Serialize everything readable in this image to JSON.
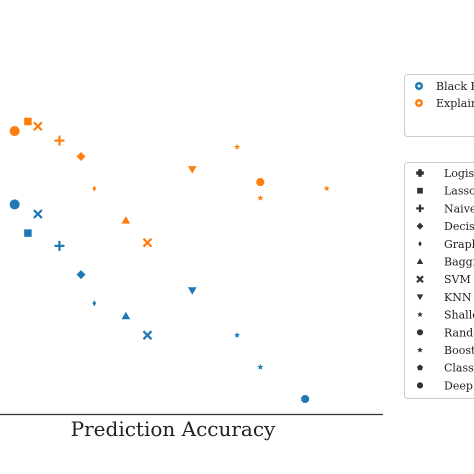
{
  "chart_data": {
    "type": "scatter",
    "xlabel": "Prediction Accuracy",
    "ylabel": "",
    "title": "",
    "grid": false,
    "xlim": [
      0,
      100
    ],
    "ylim": [
      0,
      100
    ],
    "colors": {
      "black_box": "#1f77b4",
      "explainable": "#ff7f0e"
    },
    "group_legend": {
      "placement": "top-right",
      "entries": [
        {
          "label": "Black Bo",
          "color": "#1f77b4"
        },
        {
          "label": "Explaina",
          "color": "#ff7f0e"
        }
      ]
    },
    "model_legend": {
      "placement": "right",
      "entries": [
        {
          "label": "Logist",
          "marker": "plus-filled"
        },
        {
          "label": "Lasso",
          "marker": "square"
        },
        {
          "label": "Naive",
          "marker": "plus"
        },
        {
          "label": "Decisi",
          "marker": "diamond"
        },
        {
          "label": "Graph",
          "marker": "thin-diamond"
        },
        {
          "label": "Baggi",
          "marker": "triangle-up"
        },
        {
          "label": "SVM",
          "marker": "x"
        },
        {
          "label": "KNN",
          "marker": "triangle-down"
        },
        {
          "label": "Shallo",
          "marker": "star"
        },
        {
          "label": "Rando",
          "marker": "octagon"
        },
        {
          "label": "Boost",
          "marker": "star"
        },
        {
          "label": "Classi",
          "marker": "pentagon"
        },
        {
          "label": "Deep",
          "marker": "octagon"
        }
      ]
    },
    "series": [
      {
        "name": "Black Bo",
        "points": [
          {
            "x": 2,
            "y": 61,
            "marker": "circle"
          },
          {
            "x": 6,
            "y": 52,
            "marker": "square"
          },
          {
            "x": 9,
            "y": 58,
            "marker": "x"
          },
          {
            "x": 15.5,
            "y": 48,
            "marker": "plus"
          },
          {
            "x": 22,
            "y": 39,
            "marker": "diamond"
          },
          {
            "x": 26,
            "y": 30,
            "marker": "thin-diamond"
          },
          {
            "x": 35.5,
            "y": 26,
            "marker": "triangle-up"
          },
          {
            "x": 42,
            "y": 20,
            "marker": "x"
          },
          {
            "x": 55.5,
            "y": 34,
            "marker": "triangle-down"
          },
          {
            "x": 69,
            "y": 20,
            "marker": "star"
          },
          {
            "x": 76,
            "y": 10,
            "marker": "star"
          },
          {
            "x": 89.5,
            "y": 0,
            "marker": "octagon"
          }
        ]
      },
      {
        "name": "Explaina",
        "points": [
          {
            "x": 2,
            "y": 84,
            "marker": "circle"
          },
          {
            "x": 6,
            "y": 87,
            "marker": "square"
          },
          {
            "x": 9,
            "y": 85.5,
            "marker": "x"
          },
          {
            "x": 15.5,
            "y": 81,
            "marker": "plus"
          },
          {
            "x": 22,
            "y": 76,
            "marker": "diamond"
          },
          {
            "x": 26,
            "y": 66,
            "marker": "thin-diamond"
          },
          {
            "x": 35.5,
            "y": 56,
            "marker": "triangle-up"
          },
          {
            "x": 42,
            "y": 49,
            "marker": "x"
          },
          {
            "x": 55.5,
            "y": 72,
            "marker": "triangle-down"
          },
          {
            "x": 69,
            "y": 79,
            "marker": "star"
          },
          {
            "x": 76,
            "y": 68,
            "marker": "octagon"
          },
          {
            "x": 76,
            "y": 63,
            "marker": "star"
          },
          {
            "x": 96,
            "y": 66,
            "marker": "star"
          }
        ]
      }
    ]
  }
}
